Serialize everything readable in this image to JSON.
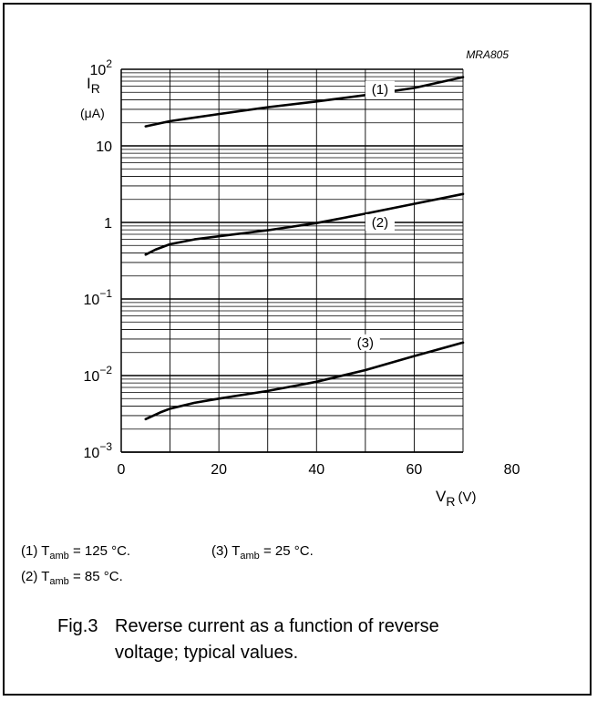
{
  "chart_data": {
    "type": "line",
    "yscale": "log",
    "code": "MRA805",
    "ylabel_main": "I",
    "ylabel_sub": "R",
    "ylabel_unit": "(μA)",
    "xlabel_main": "V",
    "xlabel_sub": "R",
    "xlabel_unit": "(V)",
    "xlim": [
      0,
      80
    ],
    "ylim": [
      0.001,
      100
    ],
    "grid_x": [
      10,
      20,
      30,
      40,
      50,
      60,
      70
    ],
    "x_ticks": [
      "0",
      "20",
      "40",
      "60",
      "80"
    ],
    "y_ticks": [
      {
        "value": 100,
        "base": "10",
        "exp": "2"
      },
      {
        "value": 10,
        "base": "10",
        "exp": ""
      },
      {
        "value": 1,
        "base": "1",
        "exp": ""
      },
      {
        "value": 0.1,
        "base": "10",
        "exp": "−1"
      },
      {
        "value": 0.01,
        "base": "10",
        "exp": "−2"
      },
      {
        "value": 0.001,
        "base": "10",
        "exp": "−3"
      }
    ],
    "series": [
      {
        "name": "(1)",
        "x": [
          5,
          10,
          20,
          30,
          40,
          50,
          60,
          70
        ],
        "y": [
          18,
          21,
          26,
          32,
          38,
          46,
          57,
          79
        ]
      },
      {
        "name": "(2)",
        "x": [
          5,
          7,
          10,
          15,
          20,
          30,
          40,
          50,
          60,
          70
        ],
        "y": [
          0.38,
          0.44,
          0.52,
          0.6,
          0.66,
          0.79,
          0.98,
          1.3,
          1.75,
          2.35
        ]
      },
      {
        "name": "(3)",
        "x": [
          5,
          8,
          10,
          15,
          20,
          30,
          40,
          50,
          60,
          70
        ],
        "y": [
          0.0027,
          0.0033,
          0.0037,
          0.0044,
          0.005,
          0.0063,
          0.0083,
          0.0118,
          0.018,
          0.027
        ]
      }
    ],
    "labels": [
      {
        "text": "(1)",
        "x": 53,
        "y": 55
      },
      {
        "text": "(2)",
        "x": 53,
        "y": 1.0
      },
      {
        "text": "(3)",
        "x": 50,
        "y": 0.027
      }
    ]
  },
  "legend": {
    "l1_prefix": "(1)  T",
    "l1_sub": "amb",
    "l1_rest": " = 125 °C.",
    "l3_prefix": "(3)  T",
    "l3_sub": "amb",
    "l3_rest": " = 25 °C.",
    "l2_prefix": "(2)  T",
    "l2_sub": "amb",
    "l2_rest": " = 85 °C."
  },
  "caption": {
    "number": "Fig.3",
    "text": "Reverse current as a function of reverse voltage; typical values."
  }
}
